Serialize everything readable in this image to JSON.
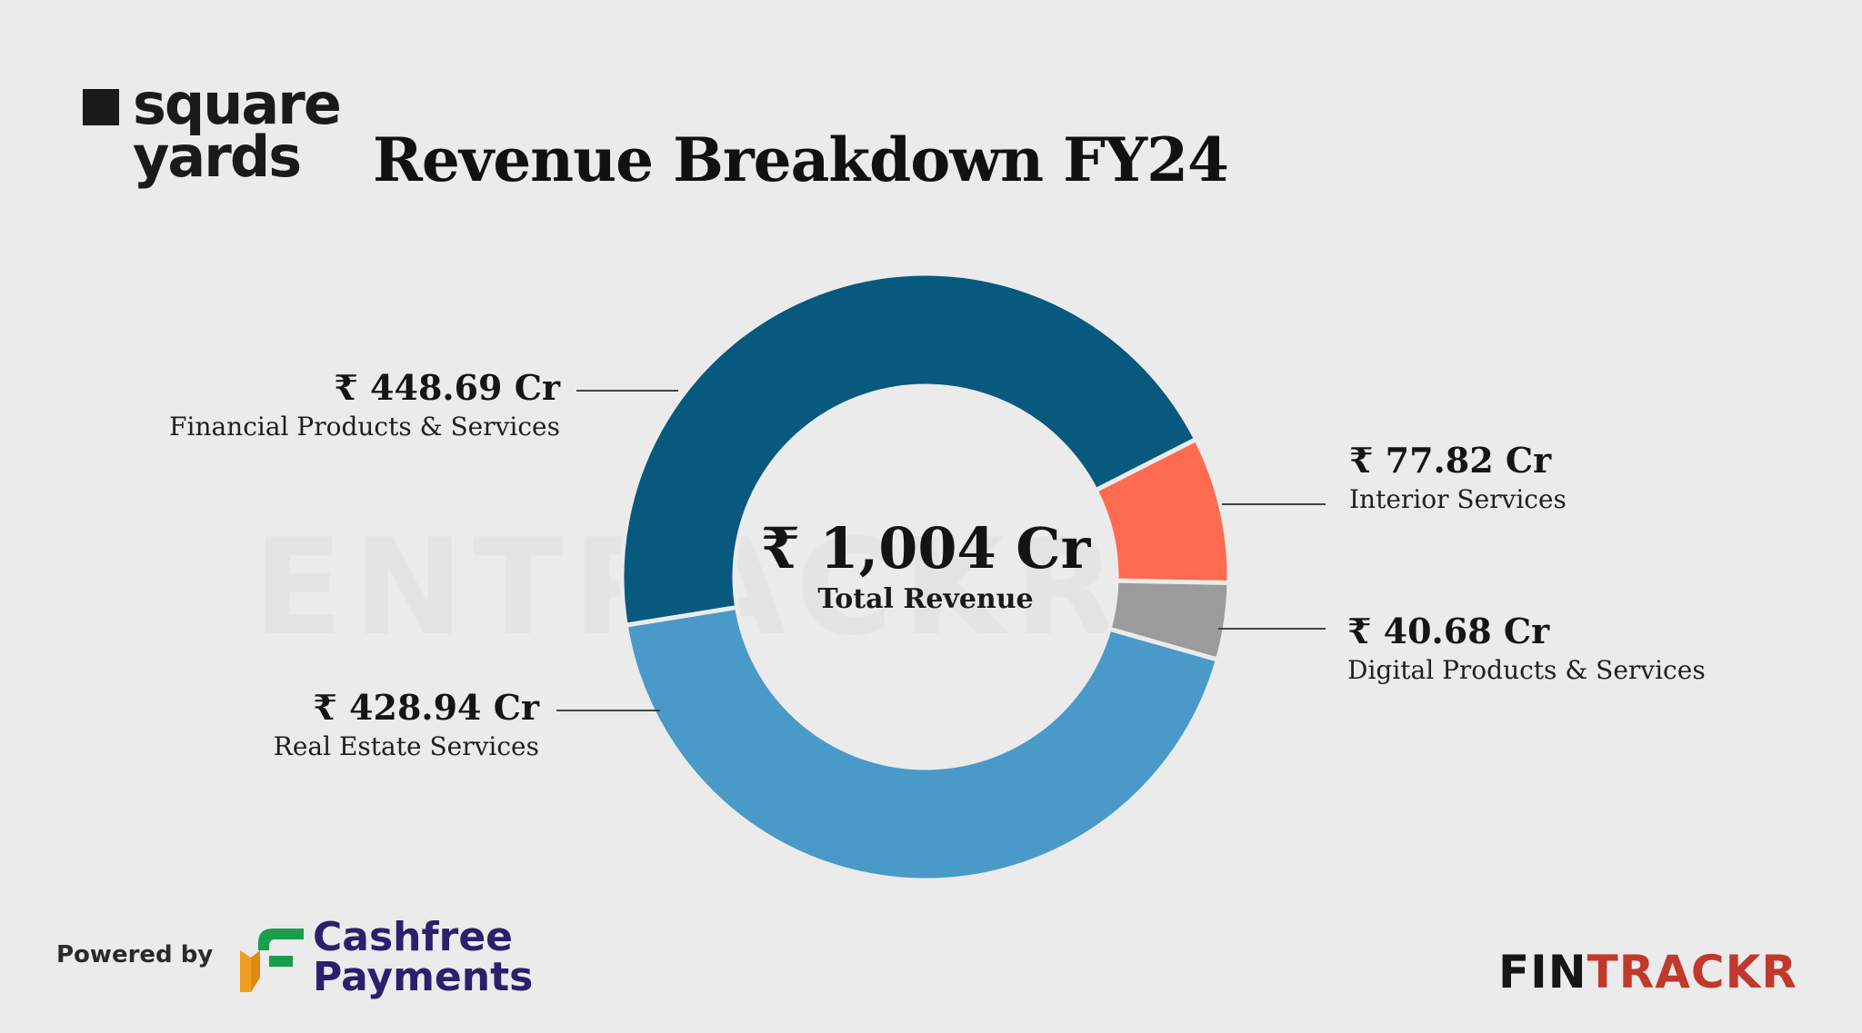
{
  "brand": {
    "logo_line1": "square",
    "logo_line2": "yards",
    "watermark": "ENTRACKR"
  },
  "header": {
    "title": "Revenue Breakdown FY24"
  },
  "chart_data": {
    "type": "pie",
    "title": "Revenue Breakdown FY24",
    "unit": "₹ Cr",
    "center_value": "₹ 1,004 Cr",
    "center_label": "Total Revenue",
    "slices": [
      {
        "name": "Financial Products & Services",
        "value": 448.69,
        "label": "₹ 448.69 Cr",
        "color": "#075a7e"
      },
      {
        "name": "Interior Services",
        "value": 77.82,
        "label": "₹ 77.82 Cr",
        "color": "#ff6b50"
      },
      {
        "name": "Digital Products & Services",
        "value": 40.68,
        "label": "₹ 40.68 Cr",
        "color": "#9b9b9b"
      },
      {
        "name": "Real Estate Services",
        "value": 428.94,
        "label": "₹ 428.94 Cr",
        "color": "#4a9ac9"
      }
    ]
  },
  "footer": {
    "powered_by": "Powered by",
    "sponsor_line1": "Cashfree",
    "sponsor_line2": "Payments",
    "publisher_part1": "FIN",
    "publisher_part2": "TRACKR",
    "sponsor_colors": {
      "green": "#1a9e4b",
      "orange": "#f0a020",
      "navy": "#2b1f6e"
    },
    "publisher_accent": "#c0392b"
  }
}
